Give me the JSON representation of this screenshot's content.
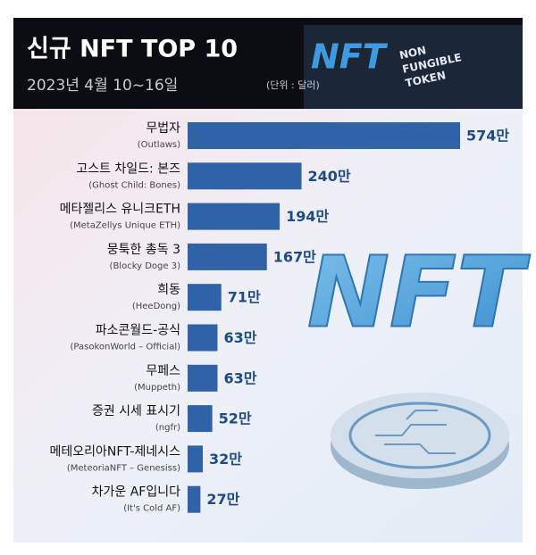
{
  "chart_data": {
    "type": "bar",
    "orientation": "horizontal",
    "title": "신규 NFT TOP 10",
    "subtitle": "2023년 4월 10~16일",
    "unit_note": "(단위 : 달러)",
    "categories": [
      "무법자",
      "고스트 차일드: 본즈",
      "메타젤리스 유니크ETH",
      "뭉툭한 총독 3",
      "희동",
      "파소콘월드-공식",
      "무페스",
      "증권 시세 표시기",
      "메테오리아NFT-제네시스",
      "차가운 AF입니다"
    ],
    "english_names": [
      "(Outlaws)",
      "(Ghost Child: Bones)",
      "(MetaZellys Unique ETH)",
      "(Blocky Doge 3)",
      "(HeeDong)",
      "(PasokonWorld – Official)",
      "(Muppeth)",
      "(ngfr)",
      "(MeteoriaNFT – Genesiss)",
      "(It's Cold AF)"
    ],
    "values": [
      574,
      240,
      194,
      167,
      71,
      63,
      63,
      52,
      32,
      27
    ],
    "value_labels": [
      "574만",
      "240만",
      "194만",
      "167만",
      "71만",
      "63만",
      "63만",
      "52만",
      "32만",
      "27만"
    ],
    "color": "#2f62a6",
    "label_color": "#1e4a86"
  },
  "decoration": {
    "banner": "NFT",
    "tagline": [
      "NON",
      "FUNGIBLE",
      "TOKEN"
    ],
    "emblem": "NFT"
  }
}
